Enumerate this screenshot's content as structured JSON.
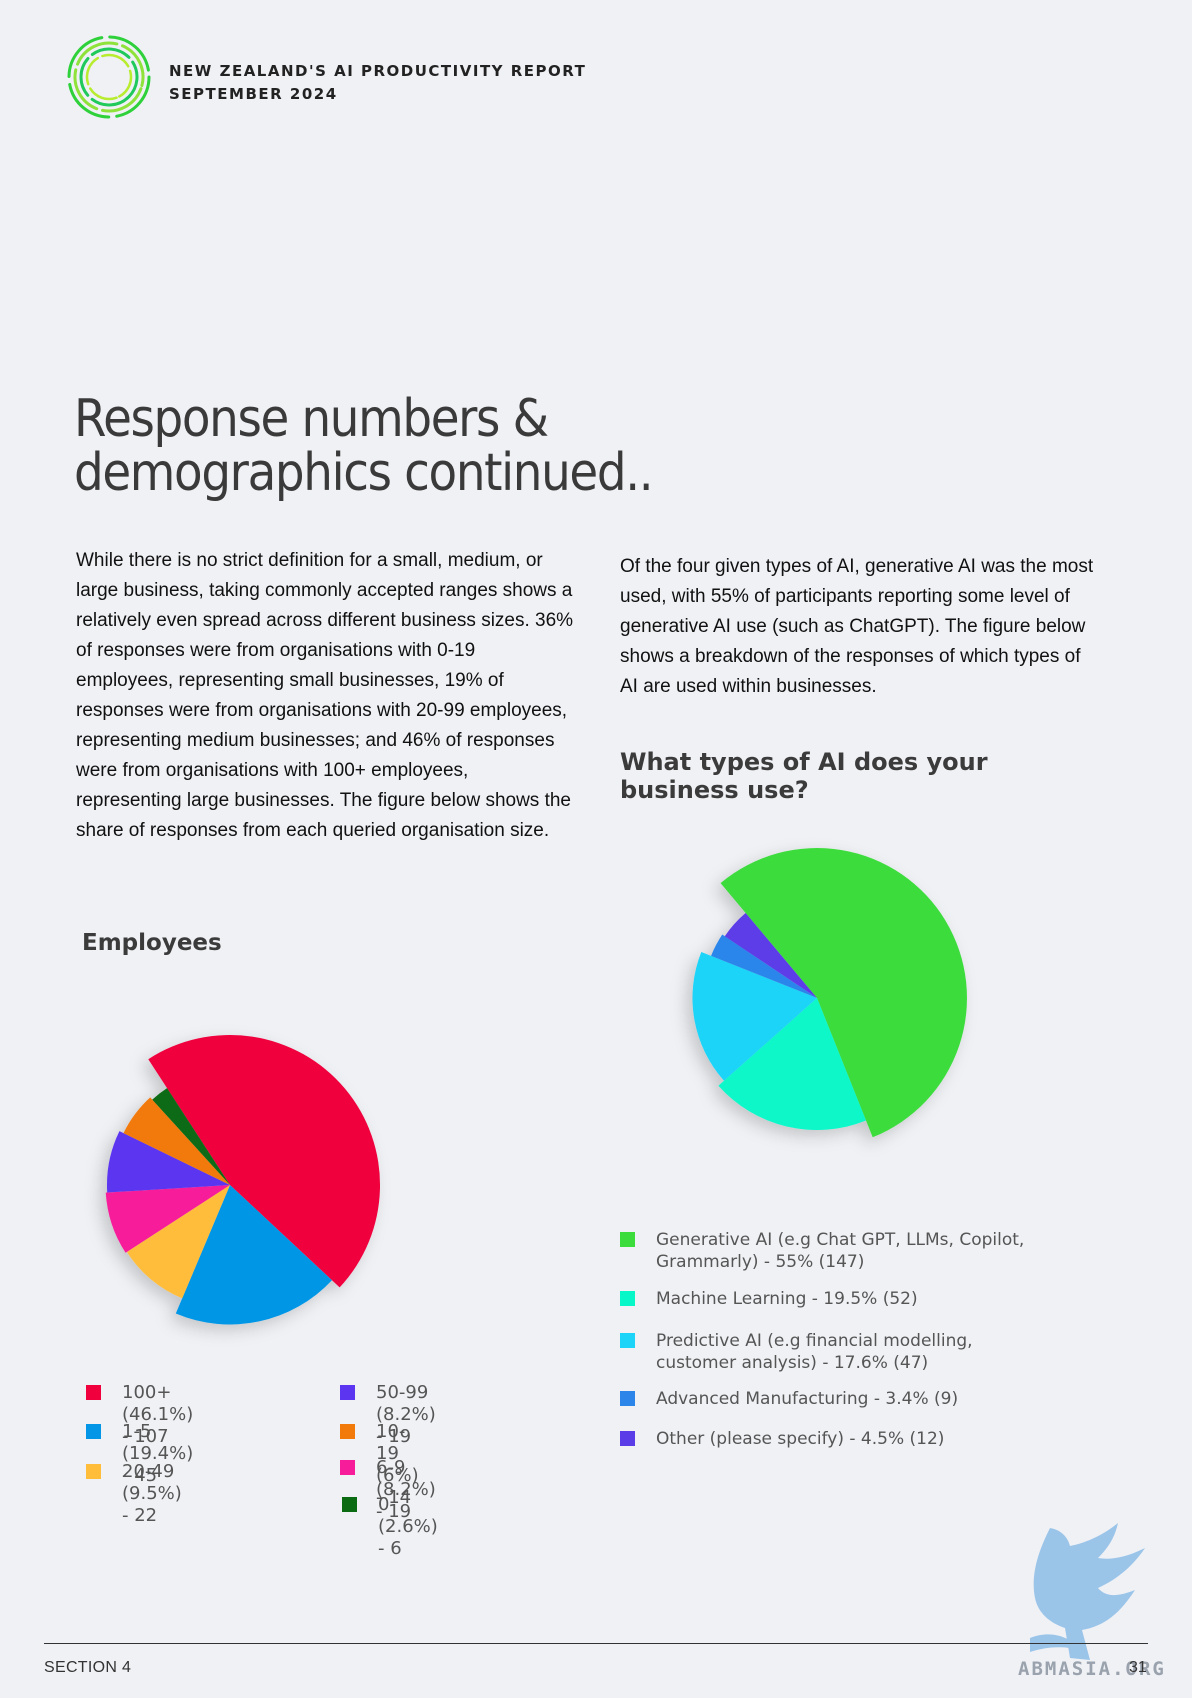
{
  "header": {
    "report_title_line1": "NEW ZEALAND'S AI PRODUCTIVITY REPORT",
    "report_title_line2": "SEPTEMBER 2024",
    "logo_icon": "concentric-rings-logo"
  },
  "page": {
    "heading_line1": "Response numbers &",
    "heading_line2": "demographics continued..",
    "left_paragraph": "While there is no strict definition for a small, medium, or large business, taking commonly accepted ranges shows a relatively even spread across different business sizes. 36% of responses were from organisations with 0-19 employees, representing small businesses, 19% of responses were from organisations with 20-99 employees, representing medium businesses; and 46% of responses were from organisations with 100+ employees, representing large businesses. The figure below shows the share of responses from each queried organisation size.",
    "right_paragraph": "Of the four given types of AI, generative AI was the most used, with 55% of participants reporting some level of generative AI use (such as ChatGPT). The figure below shows a breakdown of the responses of which types of AI are used within businesses."
  },
  "chart_data": [
    {
      "type": "pie",
      "title": "Employees",
      "legend_placement": "bottom",
      "slices": [
        {
          "label": "100+ (46.1%) - 107",
          "category": "100+",
          "percent": 46.1,
          "value": 107,
          "color": "#f0003c"
        },
        {
          "label": "1-5 (19.4%) - 45",
          "category": "1-5",
          "percent": 19.4,
          "value": 45,
          "color": "#0496e6"
        },
        {
          "label": "20-49 (9.5%) - 22",
          "category": "20-49",
          "percent": 9.5,
          "value": 22,
          "color": "#ffbd3a"
        },
        {
          "label": "6-9 (8.2%) - 19",
          "category": "6-9",
          "percent": 8.2,
          "value": 19,
          "color": "#f71d9a"
        },
        {
          "label": "50-99 (8.2%) - 19",
          "category": "50-99",
          "percent": 8.2,
          "value": 19,
          "color": "#5c35f0"
        },
        {
          "label": "10-19 (6%) - 14",
          "category": "10-19",
          "percent": 6.0,
          "value": 14,
          "color": "#f27a0a"
        },
        {
          "label": "0 (2.6%) - 6",
          "category": "0",
          "percent": 2.6,
          "value": 6,
          "color": "#0a6b12"
        }
      ],
      "legend_order": [
        "100+",
        "1-5",
        "20-49",
        "50-99",
        "10-19",
        "6-9",
        "0"
      ]
    },
    {
      "type": "pie",
      "title": "What types of AI does your business use?",
      "legend_placement": "bottom",
      "slices": [
        {
          "label": "Generative AI (e.g Chat GPT, LLMs, Copilot, Grammarly) - 55% (147)",
          "category": "Generative AI",
          "percent": 55,
          "value": 147,
          "color": "#3ddc3d"
        },
        {
          "label": "Machine Learning - 19.5% (52)",
          "category": "Machine Learning",
          "percent": 19.5,
          "value": 52,
          "color": "#08f7c9"
        },
        {
          "label": "Predictive AI (e.g financial modelling, customer analysis) - 17.6% (47)",
          "category": "Predictive AI",
          "percent": 17.6,
          "value": 47,
          "color": "#1bd4f7"
        },
        {
          "label": "Advanced Manufacturing - 3.4% (9)",
          "category": "Advanced Manufacturing",
          "percent": 3.4,
          "value": 9,
          "color": "#2c86ea"
        },
        {
          "label": "Other (please specify) - 4.5% (12)",
          "category": "Other",
          "percent": 4.5,
          "value": 12,
          "color": "#5b3de8"
        }
      ],
      "legend_lines": [
        [
          "Generative AI (e.g Chat GPT, LLMs, Copilot,",
          " Grammarly) - 55% (147)"
        ],
        [
          "Machine Learning - 19.5% (52)"
        ],
        [
          "Predictive AI (e.g financial modelling,",
          "customer analysis) - 17.6% (47)"
        ],
        [
          "Advanced Manufacturing - 3.4% (9)"
        ],
        [
          "Other (please specify) - 4.5% (12)"
        ]
      ]
    }
  ],
  "footer": {
    "section_label": "SECTION 4",
    "page_number": "31",
    "watermark_text": "ABMASIA.ORG",
    "watermark_icon": "griffin-watermark-icon"
  }
}
